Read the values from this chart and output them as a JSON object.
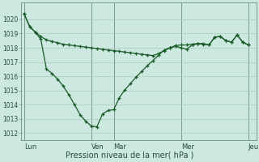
{
  "bg_color": "#cce8e0",
  "grid_color": "#aaccbb",
  "line_color1": "#1a5c28",
  "line_color2": "#1a5c28",
  "title": "Pression niveau de la mer( hPa )",
  "day_labels": [
    "Lun",
    "Ven",
    "Mar",
    "Mer",
    "Jeu"
  ],
  "day_x_positions": [
    0,
    12,
    16,
    28,
    40
  ],
  "xlim": [
    -0.5,
    41.5
  ],
  "ylim": [
    1011.5,
    1021.2
  ],
  "yticks": [
    1012,
    1013,
    1014,
    1015,
    1016,
    1017,
    1018,
    1019,
    1020
  ],
  "series1_x": [
    0,
    1,
    2,
    3,
    4,
    5,
    6,
    7,
    8,
    9,
    10,
    11,
    12,
    13,
    14,
    15,
    16,
    17,
    18,
    19,
    20,
    21,
    22,
    23,
    24,
    25,
    26,
    27,
    28,
    29,
    30,
    31,
    32,
    33,
    34,
    35,
    36,
    37,
    38,
    39,
    40
  ],
  "series1_y": [
    1020.4,
    1019.5,
    1019.1,
    1018.8,
    1018.55,
    1018.45,
    1018.35,
    1018.25,
    1018.2,
    1018.15,
    1018.1,
    1018.05,
    1018.0,
    1017.95,
    1017.9,
    1017.85,
    1017.8,
    1017.75,
    1017.7,
    1017.65,
    1017.6,
    1017.55,
    1017.5,
    1017.45,
    1017.6,
    1017.8,
    1018.0,
    1018.15,
    1018.2,
    1018.2,
    1018.25,
    1018.3,
    1018.3,
    1018.2,
    1018.75,
    1018.8,
    1018.5,
    1018.4,
    1018.9,
    1018.4,
    1018.2
  ],
  "series2_x": [
    0,
    1,
    2,
    3,
    4,
    5,
    6,
    7,
    8,
    9,
    10,
    11,
    12,
    13,
    14,
    15,
    16,
    17,
    18,
    19,
    20,
    21,
    22,
    23,
    24,
    25,
    26,
    27,
    28,
    29,
    30,
    31,
    32,
    33,
    34,
    35,
    36,
    37,
    38,
    39,
    40
  ],
  "series2_y": [
    1020.4,
    1019.5,
    1019.1,
    1018.6,
    1016.5,
    1016.2,
    1015.8,
    1015.3,
    1014.7,
    1014.0,
    1013.3,
    1012.85,
    1012.5,
    1012.45,
    1013.35,
    1013.6,
    1013.65,
    1014.5,
    1015.05,
    1015.5,
    1015.95,
    1016.35,
    1016.75,
    1017.1,
    1017.5,
    1017.85,
    1018.0,
    1018.1,
    1018.0,
    1017.9,
    1018.2,
    1018.3,
    1018.25,
    1018.2,
    1018.75,
    1018.8,
    1018.5,
    1018.4,
    1018.9,
    1018.4,
    1018.2
  ]
}
